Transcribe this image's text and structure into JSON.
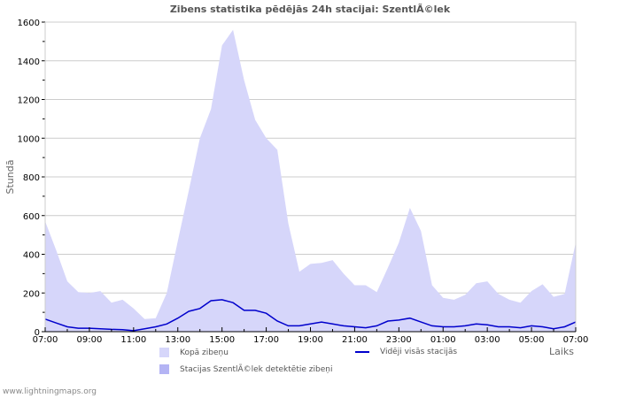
{
  "title": "Zibens statistika pēdējās 24h stacijai: SzentlÃ©lek",
  "footer": "www.lightningmaps.org",
  "colors": {
    "total_fill": "#d6d6fa",
    "station_fill": "#b4b4f4",
    "average_line": "#0000cc",
    "grid": "#cccccc",
    "frame": "#cccccc"
  },
  "legend": {
    "total": "Kopā zibeņu",
    "station": "Stacijas SzentlÃ©lek detektētie zibeņi",
    "average": "Vidēji visās stacijās"
  },
  "chart_data": {
    "type": "area",
    "title": "Zibens statistika pēdējās 24h stacijai: SzentlÃ©lek",
    "xlabel": "Laiks",
    "ylabel": "Stundā",
    "ylim": [
      0,
      1600
    ],
    "yticks": [
      0,
      200,
      400,
      600,
      800,
      1000,
      1200,
      1400,
      1600
    ],
    "xticks": [
      "07:00",
      "09:00",
      "11:00",
      "13:00",
      "15:00",
      "17:00",
      "19:00",
      "21:00",
      "23:00",
      "01:00",
      "03:00",
      "05:00",
      "07:00"
    ],
    "grid": true,
    "legend_position": "bottom",
    "x": [
      "07:00",
      "07:30",
      "08:00",
      "08:30",
      "09:00",
      "09:30",
      "10:00",
      "10:30",
      "11:00",
      "11:30",
      "12:00",
      "12:30",
      "13:00",
      "13:30",
      "14:00",
      "14:30",
      "15:00",
      "15:30",
      "16:00",
      "16:30",
      "17:00",
      "17:30",
      "18:00",
      "18:30",
      "19:00",
      "19:30",
      "20:00",
      "20:30",
      "21:00",
      "21:30",
      "22:00",
      "22:30",
      "23:00",
      "23:30",
      "00:00",
      "00:30",
      "01:00",
      "01:30",
      "02:00",
      "02:30",
      "03:00",
      "03:30",
      "04:00",
      "04:30",
      "05:00",
      "05:30",
      "06:00",
      "06:30",
      "07:00"
    ],
    "series": [
      {
        "name": "Kopā zibeņu",
        "values": [
          570,
          420,
          260,
          205,
          200,
          210,
          150,
          165,
          120,
          65,
          70,
          200,
          470,
          730,
          1000,
          1150,
          1480,
          1560,
          1300,
          1095,
          1000,
          940,
          560,
          310,
          350,
          355,
          370,
          300,
          240,
          240,
          205,
          330,
          460,
          640,
          520,
          240,
          175,
          165,
          190,
          250,
          260,
          195,
          165,
          150,
          210,
          245,
          180,
          195,
          460
        ]
      },
      {
        "name": "Stacijas SzentlÃ©lek detektētie zibeņi",
        "values": [
          0,
          0,
          0,
          0,
          0,
          0,
          0,
          0,
          0,
          0,
          0,
          0,
          0,
          0,
          0,
          0,
          0,
          0,
          0,
          0,
          0,
          0,
          0,
          0,
          0,
          0,
          0,
          0,
          0,
          0,
          0,
          0,
          0,
          0,
          0,
          0,
          0,
          0,
          0,
          0,
          0,
          0,
          0,
          0,
          0,
          0,
          0,
          0,
          0
        ]
      },
      {
        "name": "Vidēji visās stacijās",
        "values": [
          65,
          45,
          25,
          18,
          18,
          15,
          12,
          10,
          5,
          15,
          25,
          40,
          70,
          105,
          120,
          160,
          165,
          150,
          110,
          110,
          95,
          55,
          30,
          30,
          40,
          50,
          40,
          30,
          25,
          20,
          30,
          55,
          60,
          70,
          50,
          30,
          25,
          25,
          30,
          40,
          35,
          25,
          25,
          20,
          30,
          25,
          15,
          25,
          50
        ]
      }
    ]
  }
}
